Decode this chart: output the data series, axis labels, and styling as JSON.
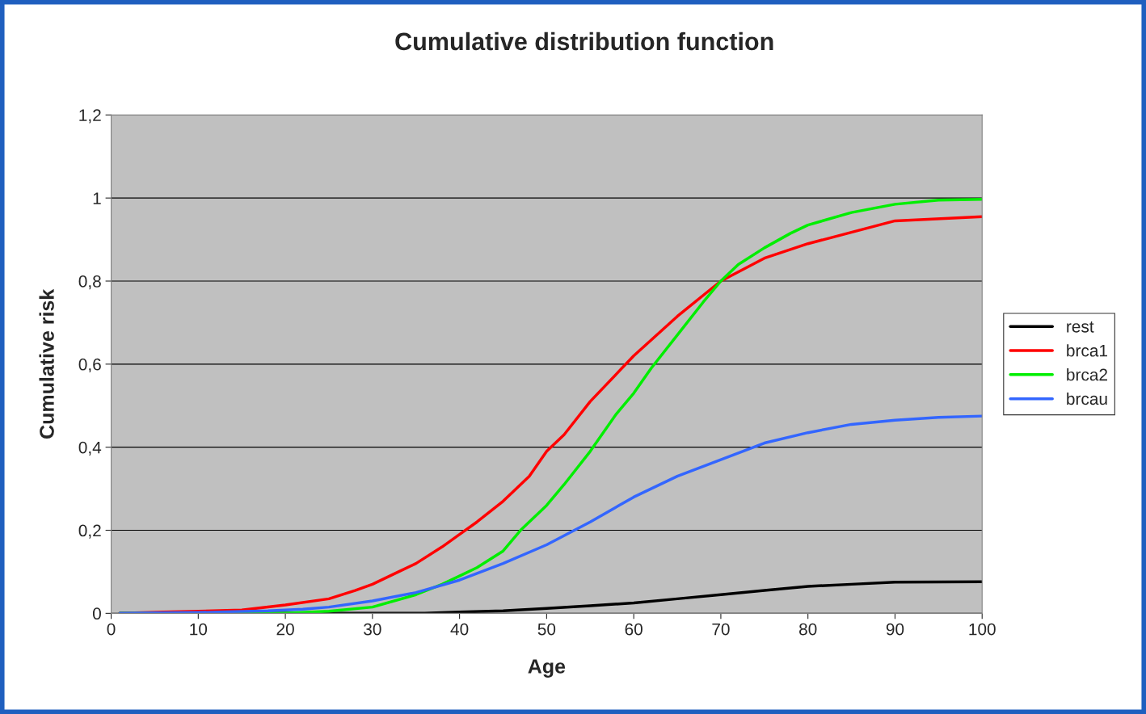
{
  "chart_data": {
    "type": "line",
    "title": "Cumulative distribution function",
    "xlabel": "Age",
    "ylabel": "Cumulative risk",
    "xlim": [
      0,
      100
    ],
    "xticks": [
      0,
      10,
      20,
      30,
      40,
      50,
      60,
      70,
      80,
      90,
      100
    ],
    "ylim": [
      0,
      1.2
    ],
    "yticks": [
      0,
      {
        "value": 0.2,
        "label": "0,2"
      },
      {
        "value": 0.4,
        "label": "0,4"
      },
      {
        "value": 0.6,
        "label": "0,6"
      },
      {
        "value": 0.8,
        "label": "0,8"
      },
      1,
      {
        "value": 1.2,
        "label": "1,2"
      }
    ],
    "grid": "y",
    "legend": "right",
    "marker": "none",
    "line_style": "solid",
    "series": [
      {
        "name": "rest",
        "color": "#000000",
        "x": [
          1,
          36,
          40,
          45,
          50,
          55,
          60,
          65,
          70,
          75,
          80,
          85,
          90,
          100
        ],
        "values": [
          0,
          0,
          0.003,
          0.006,
          0.012,
          0.018,
          0.025,
          0.035,
          0.045,
          0.055,
          0.065,
          0.07,
          0.075,
          0.076
        ]
      },
      {
        "name": "brca1",
        "color": "#ff0000",
        "x": [
          1,
          6,
          10,
          15,
          20,
          25,
          28,
          30,
          33,
          35,
          38,
          40,
          42,
          45,
          48,
          50,
          52,
          55,
          60,
          65,
          70,
          75,
          80,
          90,
          100
        ],
        "values": [
          0,
          0.003,
          0.005,
          0.008,
          0.02,
          0.035,
          0.055,
          0.07,
          0.1,
          0.12,
          0.16,
          0.19,
          0.22,
          0.27,
          0.33,
          0.39,
          0.43,
          0.51,
          0.62,
          0.715,
          0.8,
          0.855,
          0.89,
          0.945,
          0.955
        ]
      },
      {
        "name": "brca2",
        "color": "#00ee00",
        "x": [
          1,
          20,
          25,
          30,
          35,
          38,
          40,
          42,
          45,
          47,
          50,
          52,
          55,
          58,
          60,
          62,
          65,
          68,
          70,
          72,
          75,
          78,
          80,
          85,
          90,
          95,
          100
        ],
        "values": [
          0,
          0,
          0.005,
          0.015,
          0.045,
          0.07,
          0.09,
          0.11,
          0.15,
          0.2,
          0.26,
          0.31,
          0.39,
          0.48,
          0.53,
          0.59,
          0.67,
          0.75,
          0.8,
          0.84,
          0.88,
          0.915,
          0.935,
          0.965,
          0.985,
          0.995,
          0.997
        ]
      },
      {
        "name": "brcau",
        "color": "#3366ff",
        "x": [
          1,
          10,
          18,
          22,
          25,
          30,
          35,
          40,
          45,
          50,
          55,
          60,
          65,
          70,
          75,
          80,
          85,
          90,
          95,
          100
        ],
        "values": [
          0,
          0.002,
          0.006,
          0.01,
          0.015,
          0.03,
          0.05,
          0.08,
          0.12,
          0.165,
          0.22,
          0.28,
          0.33,
          0.37,
          0.41,
          0.435,
          0.455,
          0.465,
          0.472,
          0.475
        ]
      }
    ]
  }
}
